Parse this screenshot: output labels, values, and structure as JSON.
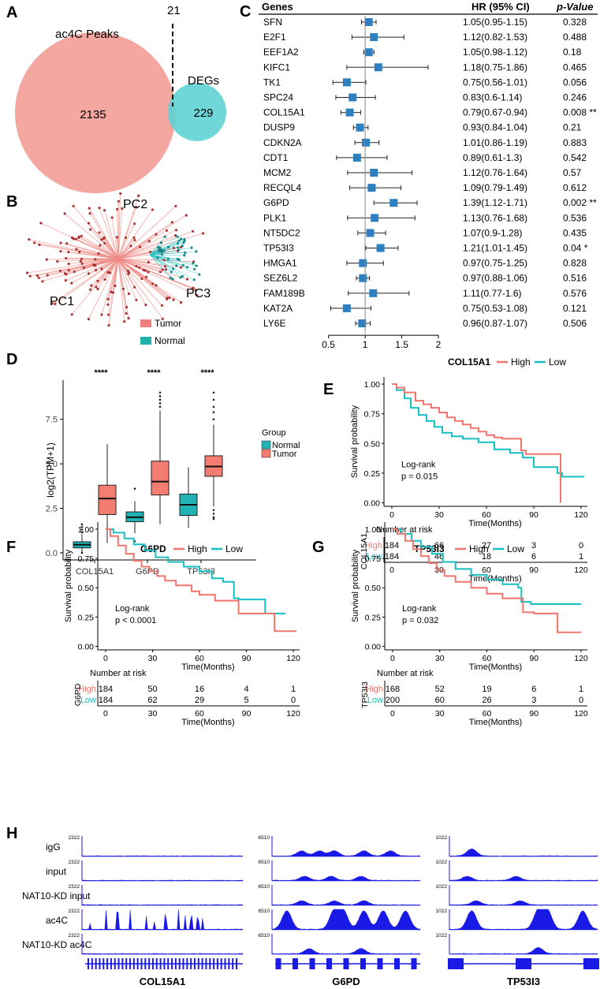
{
  "panels": {
    "A": "A",
    "B": "B",
    "C": "C",
    "D": "D",
    "E": "E",
    "F": "F",
    "G": "G",
    "H": "H"
  },
  "venn": {
    "ac4c_label": "ac4C Peaks",
    "degs_label": "DEGs",
    "ac4c_only": "2135",
    "overlap": "21",
    "degs_only": "229",
    "ac4c_color": "#f4a6a0",
    "degs_color": "#5fd3d4"
  },
  "pca": {
    "pc1": "PC1",
    "pc2": "PC2",
    "pc3": "PC3",
    "legend": [
      {
        "label": "Tumor",
        "color": "#f08080"
      },
      {
        "label": "Normal",
        "color": "#20b2aa"
      }
    ]
  },
  "forest": {
    "headers": {
      "genes": "Genes",
      "hr": "HR (95% CI)",
      "p": "p-Value"
    },
    "rows": [
      {
        "gene": "SFN",
        "hr": 1.05,
        "lo": 0.95,
        "hi": 1.15,
        "hr_text": "1.05(0.95-1.15)",
        "p": "0.328"
      },
      {
        "gene": "E2F1",
        "hr": 1.12,
        "lo": 0.82,
        "hi": 1.53,
        "hr_text": "1.12(0.82-1.53)",
        "p": "0.488"
      },
      {
        "gene": "EEF1A2",
        "hr": 1.05,
        "lo": 0.98,
        "hi": 1.12,
        "hr_text": "1.05(0.98-1.12)",
        "p": "0.18"
      },
      {
        "gene": "KIFC1",
        "hr": 1.18,
        "lo": 0.75,
        "hi": 1.86,
        "hr_text": "1.18(0.75-1.86)",
        "p": "0.465"
      },
      {
        "gene": "TK1",
        "hr": 0.75,
        "lo": 0.56,
        "hi": 1.01,
        "hr_text": "0.75(0.56-1.01)",
        "p": "0.056"
      },
      {
        "gene": "SPC24",
        "hr": 0.83,
        "lo": 0.6,
        "hi": 1.14,
        "hr_text": "0.83(0.6-1.14)",
        "p": "0.246"
      },
      {
        "gene": "COL15A1",
        "hr": 0.79,
        "lo": 0.67,
        "hi": 0.94,
        "hr_text": "0.79(0.67-0.94)",
        "p": "0.008 **"
      },
      {
        "gene": "DUSP9",
        "hr": 0.93,
        "lo": 0.84,
        "hi": 1.04,
        "hr_text": "0.93(0.84-1.04)",
        "p": "0.21"
      },
      {
        "gene": "CDKN2A",
        "hr": 1.01,
        "lo": 0.86,
        "hi": 1.19,
        "hr_text": "1.01(0.86-1.19)",
        "p": "0.883"
      },
      {
        "gene": "CDT1",
        "hr": 0.89,
        "lo": 0.61,
        "hi": 1.3,
        "hr_text": "0.89(0.61-1.3)",
        "p": "0.542"
      },
      {
        "gene": "MCM2",
        "hr": 1.12,
        "lo": 0.76,
        "hi": 1.64,
        "hr_text": "1.12(0.76-1.64)",
        "p": "0.57"
      },
      {
        "gene": "RECQL4",
        "hr": 1.09,
        "lo": 0.79,
        "hi": 1.49,
        "hr_text": "1.09(0.79-1.49)",
        "p": "0.612"
      },
      {
        "gene": "G6PD",
        "hr": 1.39,
        "lo": 1.12,
        "hi": 1.71,
        "hr_text": "1.39(1.12-1.71)",
        "p": "0.002 **"
      },
      {
        "gene": "PLK1",
        "hr": 1.13,
        "lo": 0.76,
        "hi": 1.68,
        "hr_text": "1.13(0.76-1.68)",
        "p": "0.536"
      },
      {
        "gene": "NT5DC2",
        "hr": 1.07,
        "lo": 0.9,
        "hi": 1.28,
        "hr_text": "1.07(0.9-1.28)",
        "p": "0.435"
      },
      {
        "gene": "TP53I3",
        "hr": 1.21,
        "lo": 1.01,
        "hi": 1.45,
        "hr_text": "1.21(1.01-1.45)",
        "p": "0.04 *"
      },
      {
        "gene": "HMGA1",
        "hr": 0.97,
        "lo": 0.75,
        "hi": 1.25,
        "hr_text": "0.97(0.75-1.25)",
        "p": "0.828"
      },
      {
        "gene": "SEZ6L2",
        "hr": 0.97,
        "lo": 0.88,
        "hi": 1.06,
        "hr_text": "0.97(0.88-1.06)",
        "p": "0.516"
      },
      {
        "gene": "FAM189B",
        "hr": 1.11,
        "lo": 0.77,
        "hi": 1.6,
        "hr_text": "1.11(0.77-1.6)",
        "p": "0.576"
      },
      {
        "gene": "KAT2A",
        "hr": 0.75,
        "lo": 0.53,
        "hi": 1.08,
        "hr_text": "0.75(0.53-1.08)",
        "p": "0.121"
      },
      {
        "gene": "LY6E",
        "hr": 0.96,
        "lo": 0.87,
        "hi": 1.07,
        "hr_text": "0.96(0.87-1.07)",
        "p": "0.506"
      }
    ],
    "ticks": [
      "0.5",
      "1",
      "1.5",
      "2"
    ],
    "tick_values": [
      0.5,
      1,
      1.5,
      2
    ],
    "xlim": [
      0.45,
      2.0
    ],
    "marker_color": "#2e7fc0"
  },
  "chart_data": [
    {
      "type": "box",
      "ylabel": "log2(TPM+1)",
      "categories": [
        "COL15A1",
        "G6PD",
        "TP53I3"
      ],
      "yticks": [
        "0.0",
        "2.5",
        "5.0",
        "7.5"
      ],
      "ytick_values": [
        0,
        2.5,
        5,
        7.5
      ],
      "ylim": [
        -0.4,
        9.7
      ],
      "significance": "****",
      "legend_title": "Group",
      "legend": [
        {
          "label": "Normal",
          "color": "#20b2b4"
        },
        {
          "label": "Tumor",
          "color": "#f47c70"
        }
      ],
      "boxes": [
        {
          "gene": "COL15A1",
          "group": "Normal",
          "q1": 0.28,
          "median": 0.45,
          "q3": 0.62,
          "min": 0.05,
          "max": 1.05,
          "out": [
            1.15,
            1.3,
            1.45,
            1.6,
            0.0
          ]
        },
        {
          "gene": "COL15A1",
          "group": "Tumor",
          "q1": 2.15,
          "median": 3.05,
          "q3": 3.8,
          "min": 0.55,
          "max": 6.1,
          "out": []
        },
        {
          "gene": "G6PD",
          "group": "Normal",
          "q1": 1.75,
          "median": 2.0,
          "q3": 2.3,
          "min": 1.1,
          "max": 2.9,
          "out": [
            3.6,
            0.65
          ]
        },
        {
          "gene": "G6PD",
          "group": "Tumor",
          "q1": 3.25,
          "median": 4.0,
          "q3": 5.15,
          "min": 1.6,
          "max": 8.0,
          "out": [
            8.2,
            8.4,
            8.6,
            8.8,
            9.0
          ]
        },
        {
          "gene": "TP53I3",
          "group": "Normal",
          "q1": 2.1,
          "median": 2.7,
          "q3": 3.3,
          "min": 1.4,
          "max": 4.8,
          "out": []
        },
        {
          "gene": "TP53I3",
          "group": "Tumor",
          "q1": 4.3,
          "median": 4.85,
          "q3": 5.45,
          "min": 2.6,
          "max": 7.2,
          "out": [
            2.4,
            2.2,
            2.0,
            1.9,
            7.5,
            7.9,
            8.2,
            8.6,
            9.0
          ]
        }
      ]
    },
    {
      "type": "line",
      "gene": "COL15A1",
      "hi": "High",
      "lo": "Low",
      "colors": {
        "high": "#f0756c",
        "low": "#17bfc2"
      },
      "stat": "Log-rank",
      "pval": "p = 0.015",
      "ylabel": "Survival probability",
      "xlabel": "Time(Months)",
      "xticks": [
        "0",
        "30",
        "60",
        "90",
        "120"
      ],
      "xtick_values": [
        0,
        30,
        60,
        90,
        120
      ],
      "yticks": [
        "0.00",
        "0.25",
        "0.50",
        "0.75",
        "1.00"
      ],
      "ytick_values": [
        0,
        0.25,
        0.5,
        0.75,
        1
      ],
      "xlim": [
        -5,
        124
      ],
      "ylim": [
        -0.03,
        1.06
      ],
      "high_curve": [
        [
          0,
          1
        ],
        [
          3,
          0.97
        ],
        [
          8,
          0.93
        ],
        [
          15,
          0.86
        ],
        [
          20,
          0.83
        ],
        [
          25,
          0.8
        ],
        [
          30,
          0.76
        ],
        [
          35,
          0.72
        ],
        [
          40,
          0.69
        ],
        [
          45,
          0.66
        ],
        [
          50,
          0.63
        ],
        [
          55,
          0.6
        ],
        [
          60,
          0.57
        ],
        [
          65,
          0.55
        ],
        [
          70,
          0.54
        ],
        [
          82,
          0.54
        ],
        [
          82,
          0.44
        ],
        [
          85,
          0.41
        ],
        [
          107,
          0.41
        ],
        [
          107,
          0.0
        ]
      ],
      "low_curve": [
        [
          0,
          1
        ],
        [
          3,
          0.95
        ],
        [
          8,
          0.88
        ],
        [
          12,
          0.8
        ],
        [
          17,
          0.74
        ],
        [
          22,
          0.69
        ],
        [
          27,
          0.64
        ],
        [
          32,
          0.59
        ],
        [
          38,
          0.56
        ],
        [
          45,
          0.54
        ],
        [
          55,
          0.51
        ],
        [
          65,
          0.45
        ],
        [
          75,
          0.42
        ],
        [
          83,
          0.38
        ],
        [
          90,
          0.3
        ],
        [
          105,
          0.25
        ],
        [
          108,
          0.22
        ],
        [
          122,
          0.22
        ]
      ],
      "risk_title": "Number at risk",
      "risk": [
        {
          "label": "High",
          "values": [
            "184",
            "66",
            "27",
            "3",
            "0"
          ]
        },
        {
          "label": "Low",
          "values": [
            "184",
            "46",
            "18",
            "6",
            "1"
          ]
        }
      ]
    },
    {
      "type": "line",
      "gene": "G6PD",
      "hi": "High",
      "lo": "Low",
      "colors": {
        "high": "#f0756c",
        "low": "#17bfc2"
      },
      "stat": "Log-rank",
      "pval": "p < 0.0001",
      "ylabel": "Survival probability",
      "xlabel": "Time(Months)",
      "xticks": [
        "0",
        "30",
        "60",
        "90",
        "120"
      ],
      "xtick_values": [
        0,
        30,
        60,
        90,
        120
      ],
      "yticks": [
        "0.00",
        "0.25",
        "0.50",
        "0.75",
        "1.00"
      ],
      "ytick_values": [
        0,
        0.25,
        0.5,
        0.75,
        1
      ],
      "xlim": [
        -5,
        124
      ],
      "ylim": [
        -0.03,
        1.06
      ],
      "high_curve": [
        [
          0,
          1
        ],
        [
          3,
          0.94
        ],
        [
          8,
          0.86
        ],
        [
          13,
          0.79
        ],
        [
          18,
          0.73
        ],
        [
          23,
          0.68
        ],
        [
          28,
          0.64
        ],
        [
          33,
          0.6
        ],
        [
          38,
          0.56
        ],
        [
          45,
          0.52
        ],
        [
          55,
          0.47
        ],
        [
          60,
          0.44
        ],
        [
          70,
          0.39
        ],
        [
          83,
          0.39
        ],
        [
          85,
          0.28
        ],
        [
          108,
          0.28
        ],
        [
          108,
          0.13
        ],
        [
          122,
          0.13
        ]
      ],
      "low_curve": [
        [
          0,
          1
        ],
        [
          5,
          0.97
        ],
        [
          12,
          0.92
        ],
        [
          18,
          0.87
        ],
        [
          25,
          0.82
        ],
        [
          32,
          0.76
        ],
        [
          40,
          0.72
        ],
        [
          50,
          0.68
        ],
        [
          60,
          0.64
        ],
        [
          68,
          0.58
        ],
        [
          75,
          0.55
        ],
        [
          82,
          0.5
        ],
        [
          82,
          0.41
        ],
        [
          85,
          0.4
        ],
        [
          100,
          0.4
        ],
        [
          102,
          0.28
        ],
        [
          115,
          0.28
        ]
      ],
      "risk_title": "Number at risk",
      "risk": [
        {
          "label": "High",
          "values": [
            "184",
            "50",
            "16",
            "4",
            "1"
          ]
        },
        {
          "label": "Low",
          "values": [
            "184",
            "62",
            "29",
            "5",
            "0"
          ]
        }
      ]
    },
    {
      "type": "line",
      "gene": "TP53I3",
      "hi": "High",
      "lo": "Low",
      "colors": {
        "high": "#f0756c",
        "low": "#17bfc2"
      },
      "stat": "Log-rank",
      "pval": "p = 0.032",
      "ylabel": "Survival probability",
      "xlabel": "Time(Months)",
      "xticks": [
        "0",
        "30",
        "60",
        "90",
        "120"
      ],
      "xtick_values": [
        0,
        30,
        60,
        90,
        120
      ],
      "yticks": [
        "0.00",
        "0.25",
        "0.50",
        "0.75",
        "1.00"
      ],
      "ytick_values": [
        0,
        0.25,
        0.5,
        0.75,
        1
      ],
      "xlim": [
        -5,
        124
      ],
      "ylim": [
        -0.03,
        1.06
      ],
      "high_curve": [
        [
          0,
          1
        ],
        [
          3,
          0.96
        ],
        [
          8,
          0.9
        ],
        [
          13,
          0.83
        ],
        [
          18,
          0.77
        ],
        [
          23,
          0.71
        ],
        [
          28,
          0.65
        ],
        [
          33,
          0.6
        ],
        [
          40,
          0.55
        ],
        [
          50,
          0.5
        ],
        [
          60,
          0.45
        ],
        [
          70,
          0.41
        ],
        [
          83,
          0.39
        ],
        [
          83,
          0.29
        ],
        [
          90,
          0.28
        ],
        [
          105,
          0.28
        ],
        [
          105,
          0.12
        ],
        [
          120,
          0.12
        ]
      ],
      "low_curve": [
        [
          0,
          1
        ],
        [
          5,
          0.96
        ],
        [
          12,
          0.9
        ],
        [
          18,
          0.85
        ],
        [
          25,
          0.79
        ],
        [
          32,
          0.72
        ],
        [
          40,
          0.66
        ],
        [
          50,
          0.61
        ],
        [
          60,
          0.57
        ],
        [
          70,
          0.53
        ],
        [
          80,
          0.5
        ],
        [
          82,
          0.38
        ],
        [
          88,
          0.36
        ],
        [
          120,
          0.36
        ]
      ],
      "risk_title": "Number at risk",
      "risk": [
        {
          "label": "High",
          "values": [
            "168",
            "52",
            "19",
            "6",
            "1"
          ]
        },
        {
          "label": "Low",
          "values": [
            "200",
            "60",
            "26",
            "3",
            "0"
          ]
        }
      ]
    }
  ],
  "tracks": {
    "rows": [
      "igG",
      "input",
      "NAT10-KD input",
      "ac4C",
      "NAT10-KD ac4C"
    ],
    "genes": [
      {
        "name": "COL15A1",
        "scale": "2322"
      },
      {
        "name": "G6PD",
        "scale": "6510"
      },
      {
        "name": "TP53I3",
        "scale": "1022"
      }
    ],
    "color": "#1a1ae6"
  }
}
